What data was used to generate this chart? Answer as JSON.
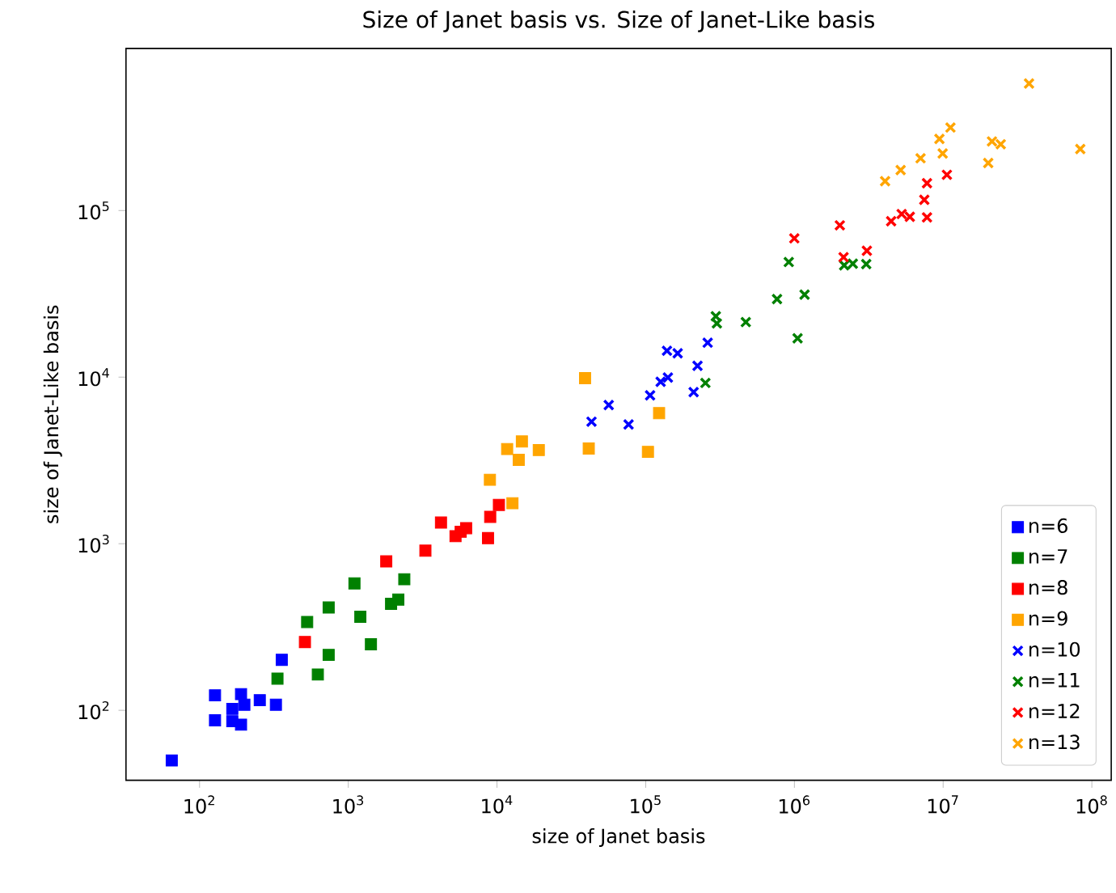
{
  "chart_data": {
    "type": "scatter",
    "title": "Size of Janet basis vs. Size of Janet-Like basis",
    "xlabel": "size of Janet basis",
    "ylabel": "size of Janet-Like basis",
    "log": "xy",
    "legend": "bottom right",
    "xlim": [
      32,
      135000000
    ],
    "ylim": [
      38,
      940000
    ],
    "xticks": [
      {
        "value": 100,
        "label": "10$^{2}$"
      },
      {
        "value": 1000,
        "label": "10$^{3}$"
      },
      {
        "value": 10000,
        "label": "10$^{4}$"
      },
      {
        "value": 100000,
        "label": "10$^{5}$"
      },
      {
        "value": 1000000,
        "label": "10$^{6}$"
      },
      {
        "value": 10000000,
        "label": "10$^{7}$"
      },
      {
        "value": 100000000,
        "label": "10$^{8}$"
      }
    ],
    "yticks": [
      {
        "value": 100,
        "label": "10$^{2}$"
      },
      {
        "value": 1000,
        "label": "10$^{3}$"
      },
      {
        "value": 10000,
        "label": "10$^{4}$"
      },
      {
        "value": 100000,
        "label": "10$^{5}$"
      }
    ],
    "series": [
      {
        "name": "n=6",
        "color": "#0000ff",
        "marker": "square",
        "x": [
          65,
          127,
          127,
          166,
          166,
          190,
          200,
          190,
          254,
          326,
          357
        ],
        "values": [
          50,
          123,
          87,
          102,
          86,
          125,
          108,
          82,
          115,
          108,
          201
        ]
      },
      {
        "name": "n=7",
        "color": "#008000",
        "marker": "square",
        "x": [
          334,
          624,
          529,
          738,
          738,
          1100,
          1205,
          1420,
          1940,
          2170,
          2380
        ],
        "values": [
          155,
          164,
          339,
          414,
          215,
          578,
          364,
          249,
          436,
          462,
          612
        ]
      },
      {
        "name": "n=8",
        "color": "#ff0000",
        "marker": "square",
        "x": [
          511,
          1800,
          3300,
          4200,
          5260,
          5700,
          6200,
          8700,
          9000,
          10300
        ],
        "values": [
          257,
          783,
          908,
          1340,
          1110,
          1180,
          1240,
          1080,
          1450,
          1710
        ]
      },
      {
        "name": "n=9",
        "color": "#ffa500",
        "marker": "square",
        "x": [
          12700,
          8960,
          11700,
          14700,
          14000,
          19100,
          39100,
          39500,
          41400,
          103500,
          123000
        ],
        "values": [
          1750,
          2420,
          3700,
          4110,
          3190,
          3650,
          9860,
          null,
          3730,
          3560,
          6080
        ]
      },
      {
        "name": "n=10",
        "color": "#0000ff",
        "marker": "cross",
        "x": [
          43200,
          56400,
          76700,
          107000,
          126000,
          141000,
          210000,
          223000,
          261000,
          139000,
          164000
        ],
        "values": [
          5400,
          6800,
          5200,
          7780,
          9380,
          9940,
          8130,
          11700,
          16100,
          14400,
          13900
        ]
      },
      {
        "name": "n=11",
        "color": "#008000",
        "marker": "cross",
        "x": [
          252000,
          296000,
          301000,
          471000,
          764000,
          916000,
          1050000,
          1170000,
          2160000,
          2470000,
          3040000
        ],
        "values": [
          9230,
          23200,
          21000,
          21400,
          29400,
          49100,
          17100,
          31300,
          46900,
          48000,
          47700
        ]
      },
      {
        "name": "n=12",
        "color": "#ff0000",
        "marker": "cross",
        "x": [
          998000,
          2020000,
          2140000,
          3070000,
          4470000,
          5260000,
          5970000,
          7790000,
          7470000,
          7790000,
          10600000
        ],
        "values": [
          68100,
          81500,
          52500,
          57400,
          86300,
          95300,
          91700,
          91000,
          116000,
          146000,
          164000
        ]
      },
      {
        "name": "n=13",
        "color": "#ffa500",
        "marker": "cross",
        "x": [
          4070000,
          5180000,
          7050000,
          9930000,
          9440000,
          11200000,
          20100000,
          21300000,
          24400000,
          37800000,
          83600000
        ],
        "values": [
          150000,
          175000,
          206000,
          220000,
          269000,
          315000,
          193000,
          260000,
          250000,
          579000,
          234000
        ]
      }
    ]
  }
}
